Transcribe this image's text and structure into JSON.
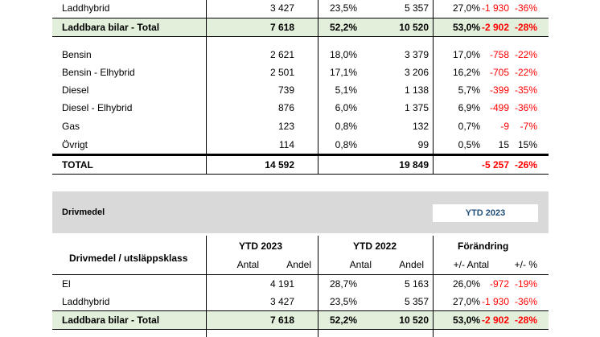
{
  "top_table": {
    "rows": [
      {
        "label": "Laddhybrid",
        "a1": "3 427",
        "p1": "23,5%",
        "a2": "5 357",
        "p2": "27,0%",
        "d1": "-1 930",
        "d2": "-36%"
      },
      {
        "label": "Laddbara bilar - Total",
        "a1": "7 618",
        "p1": "52,2%",
        "a2": "10 520",
        "p2": "53,0%",
        "d1": "-2 902",
        "d2": "-28%"
      },
      {
        "label": "Bensin",
        "a1": "2 621",
        "p1": "18,0%",
        "a2": "3 379",
        "p2": "17,0%",
        "d1": "-758",
        "d2": "-22%"
      },
      {
        "label": "Bensin - Elhybrid",
        "a1": "2 501",
        "p1": "17,1%",
        "a2": "3 206",
        "p2": "16,2%",
        "d1": "-705",
        "d2": "-22%"
      },
      {
        "label": "Diesel",
        "a1": "739",
        "p1": "5,1%",
        "a2": "1 138",
        "p2": "5,7%",
        "d1": "-399",
        "d2": "-35%"
      },
      {
        "label": "Diesel - Elhybrid",
        "a1": "876",
        "p1": "6,0%",
        "a2": "1 375",
        "p2": "6,9%",
        "d1": "-499",
        "d2": "-36%"
      },
      {
        "label": "Gas",
        "a1": "123",
        "p1": "0,8%",
        "a2": "132",
        "p2": "0,7%",
        "d1": "-9",
        "d2": "-7%"
      },
      {
        "label": "Övrigt",
        "a1": "114",
        "p1": "0,8%",
        "a2": "99",
        "p2": "0,5%",
        "d1": "15",
        "d2": "15%"
      },
      {
        "label": "TOTAL",
        "a1": "14 592",
        "p1": "",
        "a2": "19 849",
        "p2": "",
        "d1": "-5 257",
        "d2": "-26%"
      }
    ]
  },
  "section": {
    "title": "Drivmedel",
    "period_badge": "YTD 2023"
  },
  "bottom_table": {
    "header_label": "Drivmedel / utsläppsklass",
    "group1": "YTD 2023",
    "group2": "YTD 2022",
    "group3": "Förändring",
    "sub_antal": "Antal",
    "sub_andel": "Andel",
    "sub_diff_antal": "+/- Antal",
    "sub_diff_pct": "+/- %",
    "rows": [
      {
        "label": "El",
        "a1": "4 191",
        "p1": "28,7%",
        "a2": "5 163",
        "p2": "26,0%",
        "d1": "-972",
        "d2": "-19%"
      },
      {
        "label": "Laddhybrid",
        "a1": "3 427",
        "p1": "23,5%",
        "a2": "5 357",
        "p2": "27,0%",
        "d1": "-1 930",
        "d2": "-36%"
      },
      {
        "label": "Laddbara bilar - Total",
        "a1": "7 618",
        "p1": "52,2%",
        "a2": "10 520",
        "p2": "53,0%",
        "d1": "-2 902",
        "d2": "-28%"
      }
    ]
  },
  "colors": {
    "negative": "#ff0000",
    "subtotal_bg": "#e2efda",
    "band_bg": "#d9d9d9",
    "badge_text": "#1f4e79"
  }
}
